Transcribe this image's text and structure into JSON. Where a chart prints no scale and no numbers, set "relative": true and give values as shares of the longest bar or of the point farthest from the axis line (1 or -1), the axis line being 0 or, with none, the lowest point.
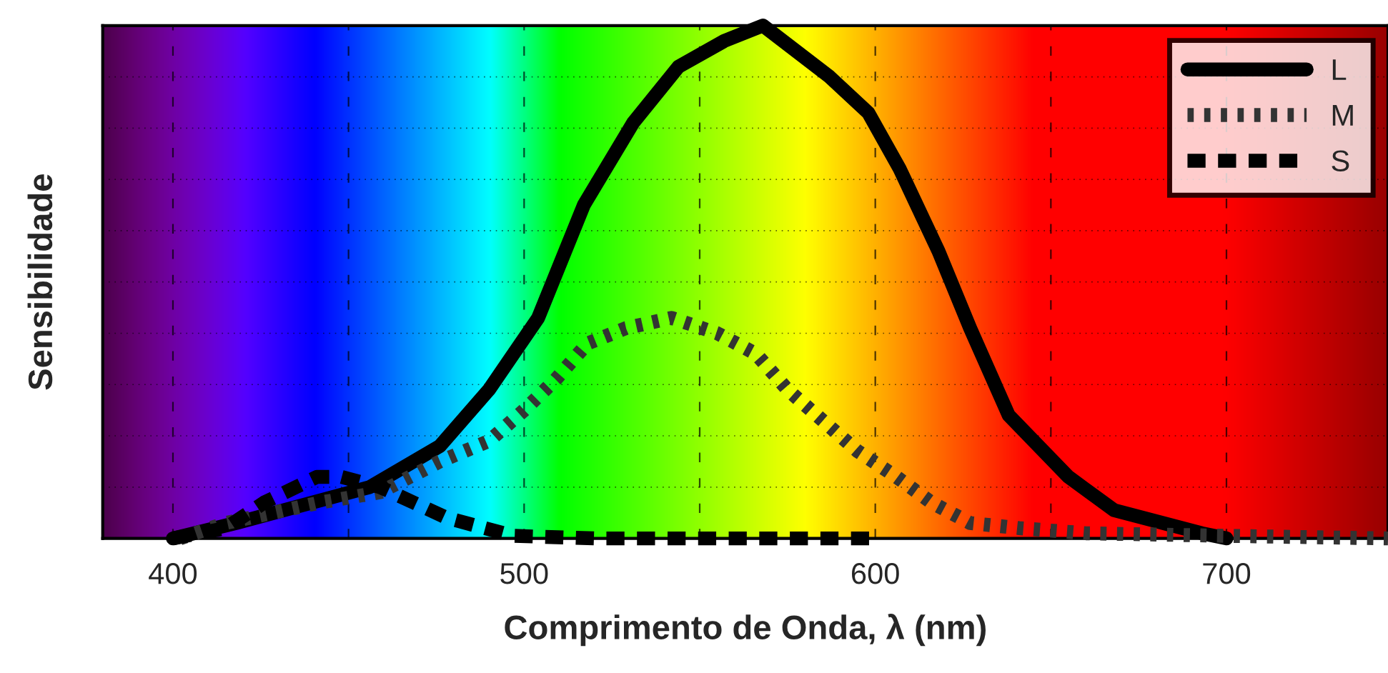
{
  "chart_data": {
    "type": "line",
    "xlabel": "Comprimento de Onda, λ (nm)",
    "ylabel": "Sensibilidade",
    "relative": true,
    "xlim": [
      380,
      746
    ],
    "xticks": [
      400,
      {
        "value": 450,
        "label": null
      },
      500,
      {
        "value": 550,
        "label": null
      },
      600,
      {
        "value": 650,
        "label": null
      },
      700
    ],
    "grid": true,
    "legend": "top right",
    "marker": "none",
    "series": [
      {
        "name": "L",
        "color": "#000000",
        "line_style": "solid",
        "x": [
          400,
          418,
          456,
          476,
          490,
          504,
          517,
          531,
          544,
          557,
          568,
          587,
          598,
          607,
          618,
          627,
          638,
          655,
          668,
          693,
          700
        ],
        "values": [
          0,
          0.03,
          0.1,
          0.18,
          0.29,
          0.43,
          0.65,
          0.81,
          0.92,
          0.97,
          1.0,
          0.9,
          0.83,
          0.72,
          0.56,
          0.41,
          0.24,
          0.12,
          0.055,
          0.01,
          0
        ]
      },
      {
        "name": "M",
        "color": "#333333",
        "line_style": "dotted",
        "x": [
          402,
          415,
          442,
          459,
          476,
          490,
          500,
          509,
          518,
          529,
          542,
          555,
          566,
          575,
          585,
          595,
          606,
          616,
          627,
          641,
          660,
          700,
          746
        ],
        "values": [
          0,
          0.03,
          0.07,
          0.09,
          0.15,
          0.19,
          0.25,
          0.31,
          0.38,
          0.41,
          0.43,
          0.4,
          0.36,
          0.29,
          0.23,
          0.17,
          0.12,
          0.07,
          0.03,
          0.02,
          0.01,
          0.005,
          0
        ]
      },
      {
        "name": "S",
        "color": "#000000",
        "line_style": "dashed",
        "x": [
          400,
          415,
          426,
          441,
          448,
          459,
          478,
          497,
          520,
          560,
          600
        ],
        "values": [
          0,
          0.02,
          0.07,
          0.12,
          0.12,
          0.1,
          0.04,
          0.005,
          0,
          0,
          0
        ]
      }
    ]
  }
}
